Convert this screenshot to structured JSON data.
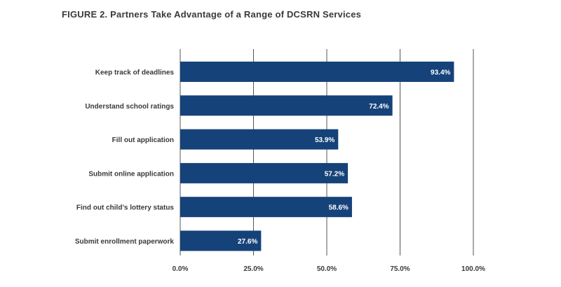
{
  "figure": {
    "title": "FIGURE 2. Partners Take Advantage of a Range of DCSRN Services"
  },
  "colors": {
    "bar": "#16427a",
    "text": "#3a3a3a",
    "grid": "#555555",
    "value_text": "#ffffff"
  },
  "chart_data": {
    "type": "bar",
    "orientation": "horizontal",
    "title": "FIGURE 2. Partners Take Advantage of a Range of DCSRN Services",
    "categories": [
      "Keep track of deadlines",
      "Understand school ratings",
      "Fill out application",
      "Submit online application",
      "Find out child’s lottery status",
      "Submit enrollment paperwork"
    ],
    "values": [
      93.4,
      72.4,
      53.9,
      57.2,
      58.6,
      27.6
    ],
    "value_labels": [
      "93.4%",
      "72.4%",
      "53.9%",
      "57.2%",
      "58.6%",
      "27.6%"
    ],
    "xlim": [
      0,
      100
    ],
    "xticks": [
      0,
      25,
      50,
      75,
      100
    ],
    "xtick_labels": [
      "0.0%",
      "25.0%",
      "50.0%",
      "75.0%",
      "100.0%"
    ],
    "xlabel": "",
    "ylabel": "",
    "grid": true
  }
}
